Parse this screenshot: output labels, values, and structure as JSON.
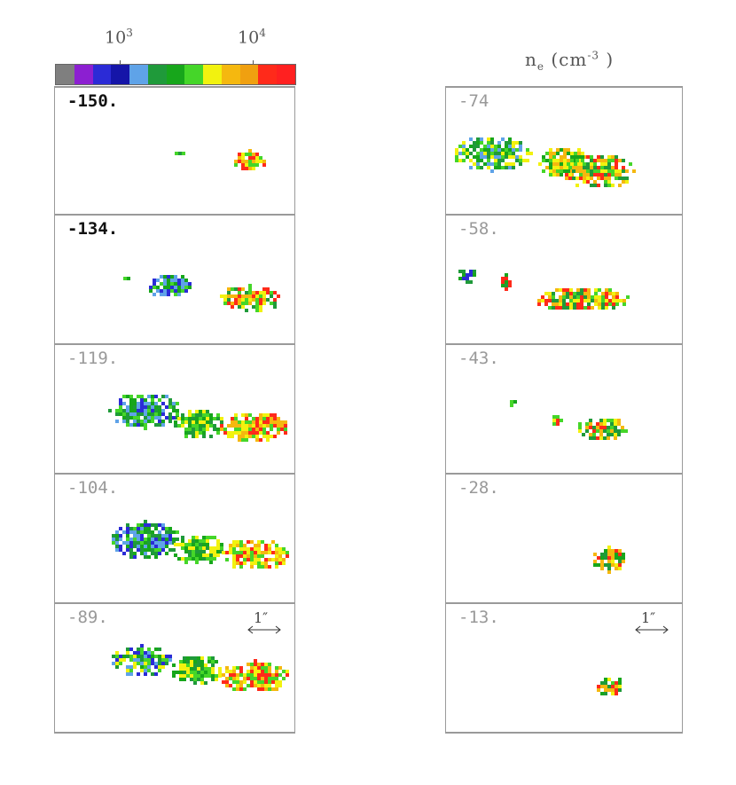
{
  "colorbar": {
    "tick_low_base": "10",
    "tick_low_exp": "3",
    "tick_high_base": "10",
    "tick_high_exp": "4",
    "colors": [
      "#7f7f7f",
      "#8c1fd1",
      "#2b2bd6",
      "#1515a8",
      "#5fa3e8",
      "#1f9a3a",
      "#17a61b",
      "#45d629",
      "#f2f20f",
      "#f5b80f",
      "#f0a010",
      "#ff2a1a",
      "#ff2020"
    ]
  },
  "unit_label": {
    "symbol": "n",
    "sub": "e",
    "unit_open": "(cm",
    "exp": "-3",
    "unit_close": ")"
  },
  "scale_bar": {
    "label": "1″"
  },
  "panels_left": [
    {
      "label": "-150.",
      "bold": true,
      "blob": "small"
    },
    {
      "label": "-134.",
      "bold": true,
      "blob": "medium"
    },
    {
      "label": "-119.",
      "bold": false,
      "blob": "large"
    },
    {
      "label": "-104.",
      "bold": false,
      "blob": "large2"
    },
    {
      "label": "-89.",
      "bold": false,
      "blob": "large3",
      "scale": true
    }
  ],
  "panels_right": [
    {
      "label": "-74",
      "bold": false,
      "blob": "large_r"
    },
    {
      "label": "-58.",
      "bold": false,
      "blob": "medium_r"
    },
    {
      "label": "-43.",
      "bold": false,
      "blob": "small_r"
    },
    {
      "label": "-28.",
      "bold": false,
      "blob": "tiny_r"
    },
    {
      "label": "-13.",
      "bold": false,
      "blob": "tiny_r2",
      "scale": true
    }
  ]
}
